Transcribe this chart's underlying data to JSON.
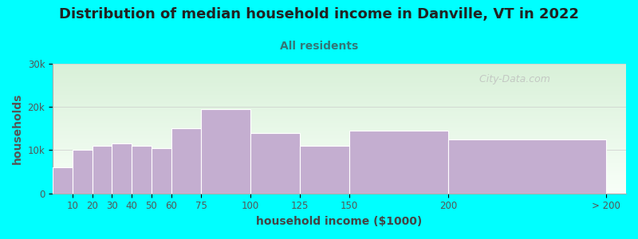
{
  "title": "Distribution of median household income in Danville, VT in 2022",
  "subtitle": "All residents",
  "xlabel": "household income ($1000)",
  "ylabel": "households",
  "background_color": "#00FFFF",
  "plot_bg_top": "#d8f0d8",
  "plot_bg_bottom": "#f8fff8",
  "bar_color": "#c4aed0",
  "bar_edge_color": "#ffffff",
  "values": [
    6000,
    10000,
    11000,
    11500,
    11000,
    10500,
    15000,
    19500,
    14000,
    11000,
    14500,
    12500
  ],
  "lefts": [
    0,
    10,
    20,
    30,
    40,
    50,
    60,
    75,
    100,
    125,
    150,
    200
  ],
  "widths": [
    10,
    10,
    10,
    10,
    10,
    10,
    15,
    25,
    25,
    25,
    50,
    80
  ],
  "ylim": [
    0,
    30000
  ],
  "yticks": [
    0,
    10000,
    20000,
    30000
  ],
  "ytick_labels": [
    "0",
    "10k",
    "20k",
    "30k"
  ],
  "xtick_positions": [
    10,
    20,
    30,
    40,
    50,
    60,
    75,
    100,
    125,
    150,
    200,
    280
  ],
  "xtick_labels": [
    "10",
    "20",
    "30",
    "40",
    "50",
    "60",
    "75",
    "100",
    "125",
    "150",
    "200",
    "> 200"
  ],
  "xlim": [
    0,
    290
  ],
  "watermark": "  City-Data.com",
  "title_fontsize": 13,
  "subtitle_fontsize": 10,
  "axis_label_fontsize": 10,
  "tick_fontsize": 8.5,
  "ylabel_color": "#555555",
  "subtitle_color": "#337777",
  "title_color": "#222222",
  "tick_color": "#555555",
  "xlabel_color": "#444444"
}
